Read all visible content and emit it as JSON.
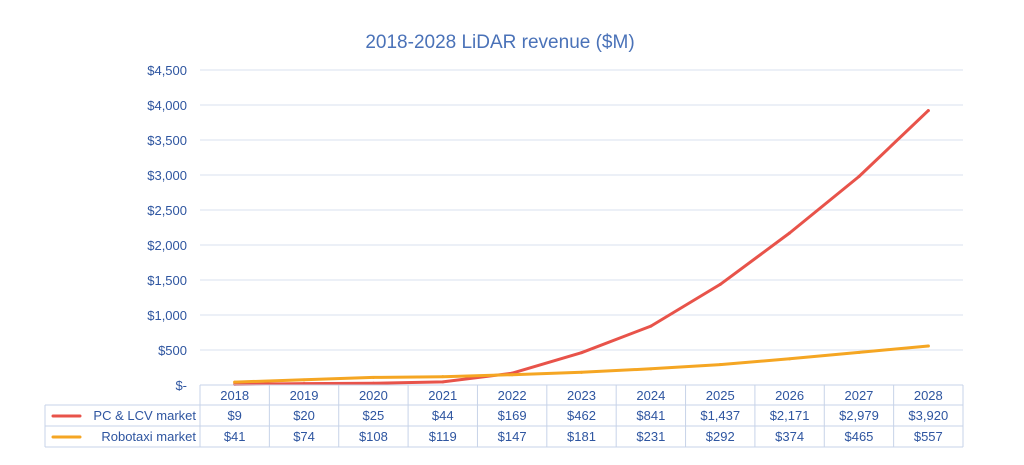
{
  "chart_data": {
    "type": "line",
    "title": "2018-2028 LiDAR revenue ($M)",
    "xlabel": "",
    "ylabel": "",
    "x": [
      "2018",
      "2019",
      "2020",
      "2021",
      "2022",
      "2023",
      "2024",
      "2025",
      "2026",
      "2027",
      "2028"
    ],
    "ylim": [
      0,
      4500
    ],
    "yticks": [
      0,
      500,
      1000,
      1500,
      2000,
      2500,
      3000,
      3500,
      4000,
      4500
    ],
    "ytick_labels": [
      "$-",
      "$500",
      "$1,000",
      "$1,500",
      "$2,000",
      "$2,500",
      "$3,000",
      "$3,500",
      "$4,000",
      "$4,500"
    ],
    "grid": true,
    "legend": "data-table",
    "series": [
      {
        "name": "PC & LCV market",
        "color": "#e8534a",
        "values": [
          9,
          20,
          25,
          44,
          169,
          462,
          841,
          1437,
          2171,
          2979,
          3920
        ],
        "labels": [
          "$9",
          "$20",
          "$25",
          "$44",
          "$169",
          "$462",
          "$841",
          "$1,437",
          "$2,171",
          "$2,979",
          "$3,920"
        ]
      },
      {
        "name": "Robotaxi market",
        "color": "#f5a623",
        "values": [
          41,
          74,
          108,
          119,
          147,
          181,
          231,
          292,
          374,
          465,
          557
        ],
        "labels": [
          "$41",
          "$74",
          "$108",
          "$119",
          "$147",
          "$181",
          "$231",
          "$292",
          "$374",
          "$465",
          "$557"
        ]
      }
    ]
  }
}
